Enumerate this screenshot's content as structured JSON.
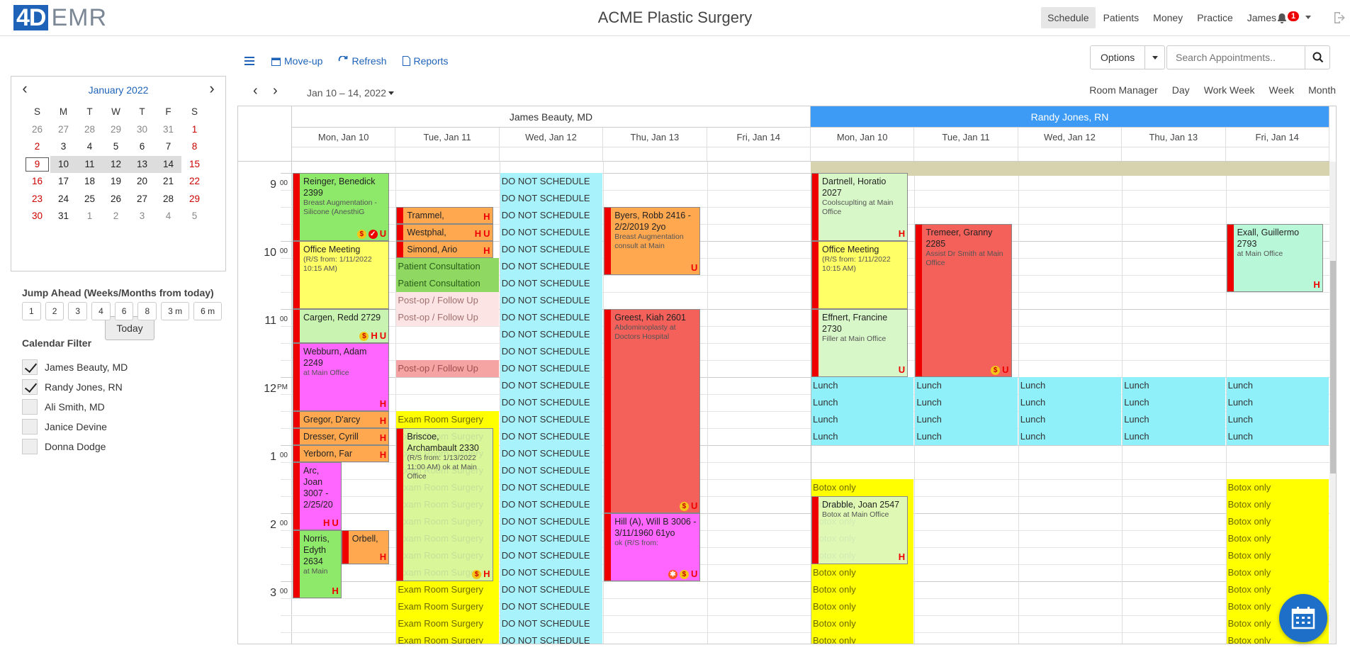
{
  "app": {
    "logo_a": "4D",
    "logo_b": "EMR",
    "title": "ACME Plastic Surgery"
  },
  "nav": {
    "items": [
      "Schedule",
      "Patients",
      "Money",
      "Practice",
      "James"
    ],
    "active": "Schedule",
    "notifications": "1"
  },
  "mini_calendar": {
    "month_label": "January 2022",
    "weekdays": [
      "S",
      "M",
      "T",
      "W",
      "T",
      "F",
      "S"
    ],
    "days": [
      [
        "26",
        "27",
        "28",
        "29",
        "30",
        "31",
        "1"
      ],
      [
        "2",
        "3",
        "4",
        "5",
        "6",
        "7",
        "8"
      ],
      [
        "9",
        "10",
        "11",
        "12",
        "13",
        "14",
        "15"
      ],
      [
        "16",
        "17",
        "18",
        "19",
        "20",
        "21",
        "22"
      ],
      [
        "23",
        "24",
        "25",
        "26",
        "27",
        "28",
        "29"
      ],
      [
        "30",
        "31",
        "1",
        "2",
        "3",
        "4",
        "5"
      ]
    ],
    "today_label": "Today"
  },
  "jump": {
    "title": "Jump Ahead (Weeks/Months from today)",
    "buttons": [
      "1",
      "2",
      "3",
      "4",
      "6",
      "8",
      "3 m",
      "6 m"
    ]
  },
  "filter": {
    "title": "Calendar Filter",
    "items": [
      {
        "label": "James Beauty, MD",
        "checked": true
      },
      {
        "label": "Randy Jones, RN",
        "checked": true
      },
      {
        "label": "Ali Smith, MD",
        "checked": false
      },
      {
        "label": "Janice Devine",
        "checked": false
      },
      {
        "label": "Donna Dodge",
        "checked": false
      }
    ]
  },
  "toolbar": {
    "moveup": "Move-up",
    "refresh": "Refresh",
    "reports": "Reports",
    "options": "Options",
    "search_placeholder": "Search Appointments.."
  },
  "calendar": {
    "range": "Jan 10 – 14, 2022",
    "views": [
      "Room Manager",
      "Day",
      "Work Week",
      "Week",
      "Month"
    ],
    "providers": [
      "James Beauty, MD",
      "Randy Jones, RN"
    ],
    "days": [
      "Mon, Jan 10",
      "Tue, Jan 11",
      "Wed, Jan 12",
      "Thu, Jan 13",
      "Fri, Jan 14"
    ],
    "hours": [
      {
        "h": "9",
        "m": "00"
      },
      {
        "h": "10",
        "m": "00"
      },
      {
        "h": "11",
        "m": "00"
      },
      {
        "h": "12",
        "m": "PM"
      },
      {
        "h": "1",
        "m": "00"
      },
      {
        "h": "2",
        "m": "00"
      },
      {
        "h": "3",
        "m": "00"
      }
    ],
    "blocks": {
      "dns": "DO NOT SCHEDULE",
      "pc": "Patient Consultation",
      "po": "Post-op / Follow Up",
      "ers": "Exam Room Surgery",
      "lunch": "Lunch",
      "botox": "Botox only"
    },
    "events": [
      {
        "title": "Reinger, Benedick 2399",
        "sub": "Breast Augmentation - Silicone (AnesthiG"
      },
      {
        "title": "Office Meeting",
        "sub": "(R/S from: 1/11/2022 10:15 AM)"
      },
      {
        "title": "Cargen, Redd 2729",
        "sub": ""
      },
      {
        "title": "Webburn, Adam 2249",
        "sub": "at Main Office"
      },
      {
        "title": "Gregor, D'arcy",
        "sub": ""
      },
      {
        "title": "Dresser, Cyrill",
        "sub": ""
      },
      {
        "title": "Yerborn, Far",
        "sub": ""
      },
      {
        "title": "Arc, Joan 3007 - 2/25/20",
        "sub": ""
      },
      {
        "title": "Orbell,",
        "sub": ""
      },
      {
        "title": "Norris, Edyth 2634",
        "sub": "at Main"
      },
      {
        "title": "Trammel,",
        "sub": ""
      },
      {
        "title": "Westphal,",
        "sub": ""
      },
      {
        "title": "Simond, Ario",
        "sub": ""
      },
      {
        "title": "Briscoe, Archambault 2330",
        "sub": "(R/S from: 1/13/2022 11:00 AM) ok at Main Office"
      },
      {
        "title": "Byers, Robb 2416 - 2/2/2019 2yo",
        "sub": "Breast Augmentation consult at Main"
      },
      {
        "title": "Greest, Kiah 2601",
        "sub": "Abdominoplasty at Doctors Hospital"
      },
      {
        "title": "Hill (A), Will B 3006 - 3/11/1960 61yo",
        "sub": "ok (R/S from:"
      },
      {
        "title": "Dartnell, Horatio 2027",
        "sub": "Coolscuplting at Main Office"
      },
      {
        "title": "Office Meeting",
        "sub": "(R/S from: 1/11/2022 10:15 AM)"
      },
      {
        "title": "Effnert, Francine 2730",
        "sub": "Filler at Main Office"
      },
      {
        "title": "Drabble, Joan 2547",
        "sub": "Botox at Main Office"
      },
      {
        "title": "Tremeer, Granny 2285",
        "sub": "Assist Dr Smith at Main Office"
      },
      {
        "title": "Exall, Guillermo 2793",
        "sub": "at Main Office"
      }
    ]
  },
  "colors": {
    "accent": "#1e63b8",
    "provider_active": "#3d9bf5",
    "red_bar": "#ee0000"
  }
}
